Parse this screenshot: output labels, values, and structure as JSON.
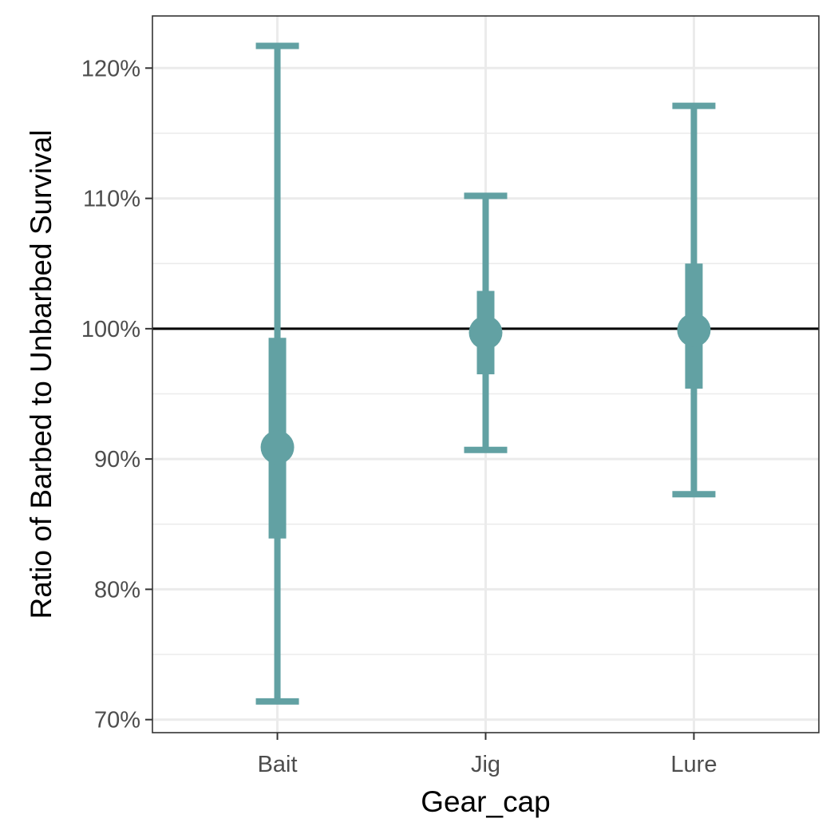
{
  "chart_data": {
    "type": "errorbar",
    "title": "",
    "xlabel": "Gear_cap",
    "ylabel": "Ratio of Barbed to Unbarbed Survival",
    "categories": [
      "Bait",
      "Jig",
      "Lure"
    ],
    "ylim": [
      69,
      124
    ],
    "y_ticks": [
      70,
      80,
      90,
      100,
      110,
      120
    ],
    "y_tick_labels": [
      "70%",
      "80%",
      "90%",
      "100%",
      "110%",
      "120%"
    ],
    "reference_line": 100,
    "series": [
      {
        "points": [
          {
            "category": "Bait",
            "estimate": 90.9,
            "inner_low": 83.9,
            "inner_high": 99.3,
            "outer_low": 71.4,
            "outer_high": 121.7
          },
          {
            "category": "Jig",
            "estimate": 99.7,
            "inner_low": 96.5,
            "inner_high": 102.9,
            "outer_low": 90.7,
            "outer_high": 110.2
          },
          {
            "category": "Lure",
            "estimate": 99.9,
            "inner_low": 95.4,
            "inner_high": 105.0,
            "outer_low": 87.3,
            "outer_high": 117.1
          }
        ]
      }
    ],
    "grid": true,
    "colors": {
      "marks": "#62a1a3",
      "reference_line": "#000000",
      "grid": "#ebebeb",
      "panel_border": "#333333"
    }
  }
}
